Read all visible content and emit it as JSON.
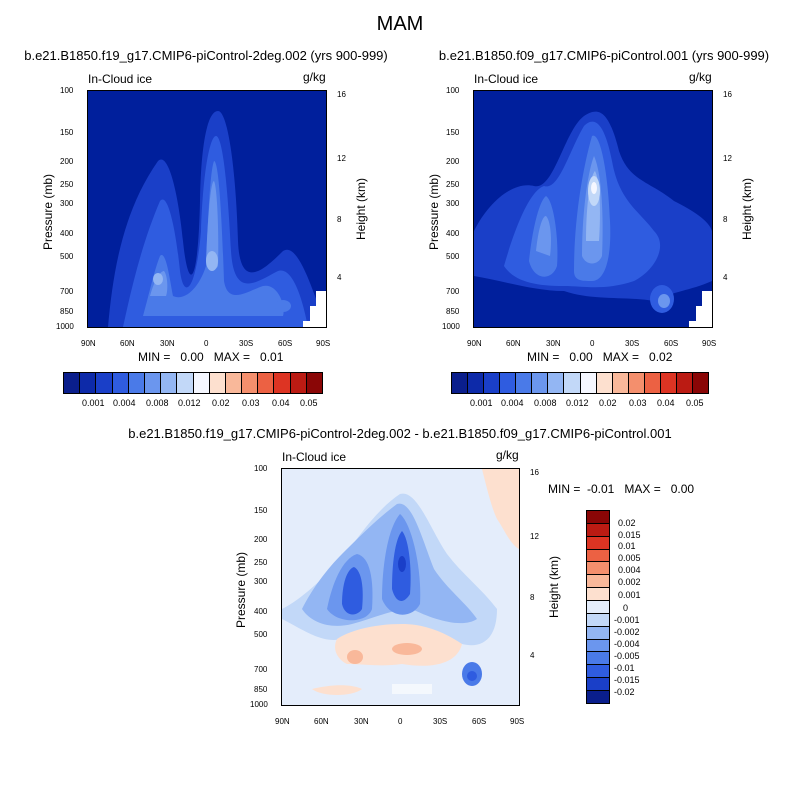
{
  "main_title": "MAM",
  "colors": {
    "seq_levels": [
      "#0a1e8c",
      "#0d2aa9",
      "#1a3fc8",
      "#2f5ce0",
      "#4a7ae8",
      "#6b96ee",
      "#93b6f3",
      "#c2d8f8",
      "#f5f7ff",
      "#fde0cf",
      "#f9b89a",
      "#f48f6d",
      "#ec6143",
      "#dd3423",
      "#bb1b13",
      "#8a0606"
    ],
    "diff_levels": [
      "#8a0606",
      "#bb1b13",
      "#dd3423",
      "#ec6143",
      "#f48f6d",
      "#f9b89a",
      "#fde0cf",
      "#e4edfb",
      "#c2d8f8",
      "#93b6f3",
      "#6b96ee",
      "#4a7ae8",
      "#2f5ce0",
      "#1a3fc8",
      "#0a1e8c"
    ]
  },
  "chart_data": [
    {
      "type": "heatmap",
      "title": "b.e21.B1850.f19_g17.CMIP6-piControl-2deg.002 (yrs 900-999)",
      "variable": "In-Cloud ice",
      "units": "g/kg",
      "xlabel": "",
      "ylabel": "Pressure (mb)",
      "ylabel_right": "Height (km)",
      "x_ticks": [
        "90N",
        "60N",
        "30N",
        "0",
        "30S",
        "60S",
        "90S"
      ],
      "y_ticks": [
        "100",
        "150",
        "200",
        "250",
        "300",
        "400",
        "500",
        "700",
        "850",
        "1000"
      ],
      "y_right_ticks": [
        "16",
        "12",
        "8",
        "4"
      ],
      "min_label": "MIN =   0.00   MAX =   0.01",
      "min": 0.0,
      "max": 0.01,
      "colorbar_labels": [
        "0.001",
        "0.004",
        "0.008",
        "0.012",
        "0.02",
        "0.03",
        "0.04",
        "0.05"
      ]
    },
    {
      "type": "heatmap",
      "title": "b.e21.B1850.f09_g17.CMIP6-piControl.001 (yrs 900-999)",
      "variable": "In-Cloud ice",
      "units": "g/kg",
      "xlabel": "",
      "ylabel": "Pressure (mb)",
      "ylabel_right": "Height (km)",
      "x_ticks": [
        "90N",
        "60N",
        "30N",
        "0",
        "30S",
        "60S",
        "90S"
      ],
      "y_ticks": [
        "100",
        "150",
        "200",
        "250",
        "300",
        "400",
        "500",
        "700",
        "850",
        "1000"
      ],
      "y_right_ticks": [
        "16",
        "12",
        "8",
        "4"
      ],
      "min_label": "MIN =   0.00   MAX =   0.02",
      "min": 0.0,
      "max": 0.02,
      "colorbar_labels": [
        "0.001",
        "0.004",
        "0.008",
        "0.012",
        "0.02",
        "0.03",
        "0.04",
        "0.05"
      ]
    },
    {
      "type": "heatmap",
      "title": "b.e21.B1850.f19_g17.CMIP6-piControl-2deg.002 - b.e21.B1850.f09_g17.CMIP6-piControl.001",
      "variable": "In-Cloud ice",
      "units": "g/kg",
      "xlabel": "",
      "ylabel": "Pressure (mb)",
      "ylabel_right": "Height (km)",
      "x_ticks": [
        "90N",
        "60N",
        "30N",
        "0",
        "30S",
        "60S",
        "90S"
      ],
      "y_ticks": [
        "100",
        "150",
        "200",
        "250",
        "300",
        "400",
        "500",
        "700",
        "850",
        "1000"
      ],
      "y_right_ticks": [
        "16",
        "12",
        "8",
        "4"
      ],
      "min_label": "MIN =  -0.01   MAX =   0.00",
      "min": -0.01,
      "max": 0.0,
      "colorbar_labels": [
        "0.02",
        "0.015",
        "0.01",
        "0.005",
        "0.004",
        "0.002",
        "0.001",
        "0",
        "-0.001",
        "-0.002",
        "-0.004",
        "-0.005",
        "-0.01",
        "-0.015",
        "-0.02"
      ]
    }
  ]
}
